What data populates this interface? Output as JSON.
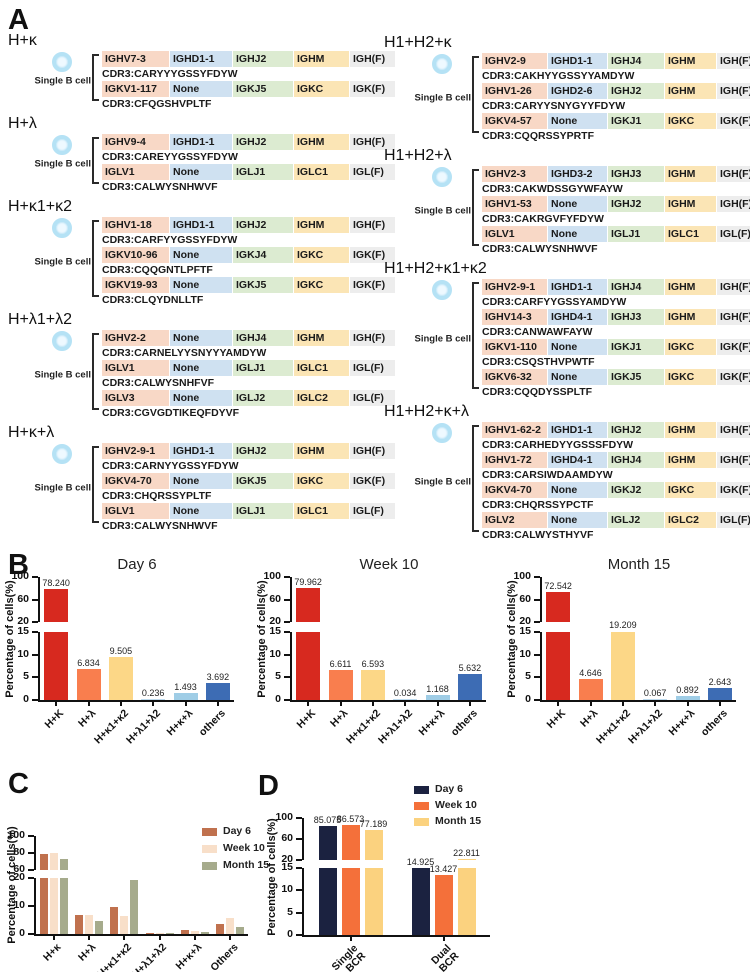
{
  "panel_a": {
    "label": "A",
    "single_b_cell_label": "Single B cell",
    "box_colors": {
      "v_gene": "#f8d8c6",
      "d_gene": "#cfe1f1",
      "j_gene": "#dcebd1",
      "c_gene": "#fbe5b5",
      "functional": "#ededed"
    },
    "columns": [
      {
        "groups": [
          {
            "title": "H+κ",
            "chains": [
              {
                "segments": [
                  "IGHV7-3",
                  "IGHD1-1",
                  "IGHJ2",
                  "IGHM",
                  "IGH(F)"
                ],
                "cdr3": "CDR3:CARYYYGSSYFDYW"
              },
              {
                "segments": [
                  "IGKV1-117",
                  "None",
                  "IGKJ5",
                  "IGKC",
                  "IGK(F)"
                ],
                "cdr3": "CDR3:CFQGSHVPLTF"
              }
            ]
          },
          {
            "title": "H+λ",
            "chains": [
              {
                "segments": [
                  "IGHV9-4",
                  "IGHD1-1",
                  "IGHJ2",
                  "IGHM",
                  "IGH(F)"
                ],
                "cdr3": "CDR3:CAREYYGSSYFDYW"
              },
              {
                "segments": [
                  "IGLV1",
                  "None",
                  "IGLJ1",
                  "IGLC1",
                  "IGL(F)"
                ],
                "cdr3": "CDR3:CALWYSNHWVF"
              }
            ]
          },
          {
            "title": "H+κ1+κ2",
            "chains": [
              {
                "segments": [
                  "IGHV1-18",
                  "IGHD1-1",
                  "IGHJ2",
                  "IGHM",
                  "IGH(F)"
                ],
                "cdr3": "CDR3:CARFYYGSSYFDYW"
              },
              {
                "segments": [
                  "IGKV10-96",
                  "None",
                  "IGKJ4",
                  "IGKC",
                  "IGK(F)"
                ],
                "cdr3": "CDR3:CQQGNTLPFTF"
              },
              {
                "segments": [
                  "IGKV19-93",
                  "None",
                  "IGKJ5",
                  "IGKC",
                  "IGK(F)"
                ],
                "cdr3": "CDR3:CLQYDNLLTF"
              }
            ]
          },
          {
            "title": "H+λ1+λ2",
            "chains": [
              {
                "segments": [
                  "IGHV2-2",
                  "None",
                  "IGHJ4",
                  "IGHM",
                  "IGH(F)"
                ],
                "cdr3": "CDR3:CARNELYYSNYYYAMDYW"
              },
              {
                "segments": [
                  "IGLV1",
                  "None",
                  "IGLJ1",
                  "IGLC1",
                  "IGL(F)"
                ],
                "cdr3": "CDR3:CALWYSNHFVF"
              },
              {
                "segments": [
                  "IGLV3",
                  "None",
                  "IGLJ2",
                  "IGLC2",
                  "IGL(F)"
                ],
                "cdr3": "CDR3:CGVGDTIKEQFDYVF"
              }
            ]
          },
          {
            "title": "H+κ+λ",
            "chains": [
              {
                "segments": [
                  "IGHV2-9-1",
                  "IGHD1-1",
                  "IGHJ2",
                  "IGHM",
                  "IGH(F)"
                ],
                "cdr3": "CDR3:CARNYYGSSYFDYW"
              },
              {
                "segments": [
                  "IGKV4-70",
                  "None",
                  "IGKJ5",
                  "IGKC",
                  "IGK(F)"
                ],
                "cdr3": "CDR3:CHQRSSYPLTF"
              },
              {
                "segments": [
                  "IGLV1",
                  "None",
                  "IGLJ1",
                  "IGLC1",
                  "IGL(F)"
                ],
                "cdr3": "CDR3:CALWYSNHWVF"
              }
            ]
          }
        ]
      },
      {
        "groups": [
          {
            "title": "H1+H2+κ",
            "chains": [
              {
                "segments": [
                  "IGHV2-9",
                  "IGHD1-1",
                  "IGHJ4",
                  "IGHM",
                  "IGH(F)"
                ],
                "cdr3": "CDR3:CAKHYYGSSYYAMDYW"
              },
              {
                "segments": [
                  "IGHV1-26",
                  "IGHD2-6",
                  "IGHJ2",
                  "IGHM",
                  "IGH(F)"
                ],
                "cdr3": "CDR3:CARYYSNYGYYFDYW"
              },
              {
                "segments": [
                  "IGKV4-57",
                  "None",
                  "IGKJ1",
                  "IGKC",
                  "IGK(F)"
                ],
                "cdr3": "CDR3:CQQRSSYPRTF"
              }
            ]
          },
          {
            "title": "H1+H2+λ",
            "chains": [
              {
                "segments": [
                  "IGHV2-3",
                  "IGHD3-2",
                  "IGHJ3",
                  "IGHM",
                  "IGH(F)"
                ],
                "cdr3": "CDR3:CAKWDSSGYWFAYW"
              },
              {
                "segments": [
                  "IGHV1-53",
                  "None",
                  "IGHJ2",
                  "IGHM",
                  "IGH(F)"
                ],
                "cdr3": "CDR3:CAKRGVFYFDYW"
              },
              {
                "segments": [
                  "IGLV1",
                  "None",
                  "IGLJ1",
                  "IGLC1",
                  "IGL(F)"
                ],
                "cdr3": "CDR3:CALWYSNHWVF"
              }
            ]
          },
          {
            "title": "H1+H2+κ1+κ2",
            "chains": [
              {
                "segments": [
                  "IGHV2-9-1",
                  "IGHD1-1",
                  "IGHJ4",
                  "IGHM",
                  "IGH(F)"
                ],
                "cdr3": "CDR3:CARFYYGSSYAMDYW"
              },
              {
                "segments": [
                  "IGHV14-3",
                  "IGHD4-1",
                  "IGHJ3",
                  "IGHM",
                  "IGH(F)"
                ],
                "cdr3": "CDR3:CANWAWFAYW"
              },
              {
                "segments": [
                  "IGKV1-110",
                  "None",
                  "IGKJ1",
                  "IGKC",
                  "IGK(F)"
                ],
                "cdr3": "CDR3:CSQSTHVPWTF"
              },
              {
                "segments": [
                  "IGKV6-32",
                  "None",
                  "IGKJ5",
                  "IGKC",
                  "IGK(F)"
                ],
                "cdr3": "CDR3:CQQDYSSPLTF"
              }
            ]
          },
          {
            "title": "H1+H2+κ+λ",
            "chains": [
              {
                "segments": [
                  "IGHV1-62-2",
                  "IGHD1-1",
                  "IGHJ2",
                  "IGHM",
                  "IGH(F)"
                ],
                "cdr3": "CDR3:CARHEDYYGSSSFDYW"
              },
              {
                "segments": [
                  "IGHV1-72",
                  "IGHD4-1",
                  "IGHJ4",
                  "IGHM",
                  "IGH(F)"
                ],
                "cdr3": "CDR3:CARSIWDAAMDYW"
              },
              {
                "segments": [
                  "IGKV4-70",
                  "None",
                  "IGKJ2",
                  "IGKC",
                  "IGK(F)"
                ],
                "cdr3": "CDR3:CHQRSSYPCTF"
              },
              {
                "segments": [
                  "IGLV2",
                  "None",
                  "IGLJ2",
                  "IGLC2",
                  "IGL(F)"
                ],
                "cdr3": "CDR3:CALWYSTHYVF"
              }
            ]
          }
        ]
      }
    ]
  },
  "panel_b": {
    "label": "B"
  },
  "panel_c": {
    "label": "C"
  },
  "panel_d": {
    "label": "D"
  },
  "chart_data": [
    {
      "id": "day6",
      "type": "bar",
      "title": "Day 6",
      "ylabel": "Percentage of cells(%)",
      "categories": [
        "H+K",
        "H+λ",
        "H+κ1+κ2",
        "H+λ1+λ2",
        "H+κ+λ",
        "others"
      ],
      "values": [
        78.24,
        6.834,
        9.505,
        0.236,
        1.493,
        3.692
      ],
      "value_labels": [
        "78.240",
        "6.834",
        "9.505",
        "0.236",
        "1.493",
        "3.692"
      ],
      "bar_colors": [
        "#d7291f",
        "#f97e4e",
        "#fcd787",
        "#bcd9ed",
        "#9fcde6",
        "#3d6cb4"
      ],
      "axis_break": {
        "lower_range": [
          0,
          15
        ],
        "upper_range": [
          20,
          100
        ]
      },
      "lower_ticks": [
        15,
        10,
        5,
        0
      ],
      "upper_ticks": [
        100,
        60,
        20
      ],
      "grid": false
    },
    {
      "id": "week10",
      "type": "bar",
      "title": "Week 10",
      "ylabel": "Percentage of cells(%)",
      "categories": [
        "H+K",
        "H+λ",
        "H+κ1+κ2",
        "H+λ1+λ2",
        "H+κ+λ",
        "others"
      ],
      "values": [
        79.962,
        6.611,
        6.593,
        0.034,
        1.168,
        5.632
      ],
      "value_labels": [
        "79.962",
        "6.611",
        "6.593",
        "0.034",
        "1.168",
        "5.632"
      ],
      "bar_colors": [
        "#d7291f",
        "#f97e4e",
        "#fcd787",
        "#bcd9ed",
        "#9fcde6",
        "#3d6cb4"
      ],
      "axis_break": {
        "lower_range": [
          0,
          15
        ],
        "upper_range": [
          20,
          100
        ]
      },
      "lower_ticks": [
        15,
        10,
        5,
        0
      ],
      "upper_ticks": [
        100,
        60,
        20
      ],
      "grid": false
    },
    {
      "id": "month15",
      "type": "bar",
      "title": "Month 15",
      "ylabel": "Percentage of cells(%)",
      "categories": [
        "H+K",
        "H+λ",
        "H+κ1+κ2",
        "H+λ1+λ2",
        "H+κ+λ",
        "others"
      ],
      "values": [
        72.542,
        4.646,
        19.209,
        0.067,
        0.892,
        2.643
      ],
      "value_labels": [
        "72.542",
        "4.646",
        "19.209",
        "0.067",
        "0.892",
        "2.643"
      ],
      "bar_colors": [
        "#d7291f",
        "#f97e4e",
        "#fcd787",
        "#bcd9ed",
        "#9fcde6",
        "#3d6cb4"
      ],
      "axis_break": {
        "lower_range": [
          0,
          15
        ],
        "upper_range": [
          20,
          100
        ]
      },
      "lower_ticks": [
        15,
        10,
        5,
        0
      ],
      "upper_ticks": [
        100,
        60,
        20
      ],
      "grid": false
    },
    {
      "id": "panel_c",
      "type": "bar",
      "title": "",
      "ylabel": "Percentage of cells(%)",
      "categories": [
        "H+κ",
        "H+λ",
        "H+κ1+κ2",
        "H+λ1+λ2",
        "H+κ+λ",
        "Others"
      ],
      "series": [
        {
          "name": "Day 6",
          "color": "#c0714e",
          "values": [
            78.24,
            6.834,
            9.505,
            0.236,
            1.493,
            3.692
          ]
        },
        {
          "name": "Week 10",
          "color": "#f8dfc9",
          "values": [
            79.962,
            6.611,
            6.593,
            0.034,
            1.168,
            5.632
          ]
        },
        {
          "name": "Month 15",
          "color": "#a6ab8c",
          "values": [
            72.542,
            4.646,
            19.209,
            0.067,
            0.892,
            2.643
          ]
        }
      ],
      "axis_break": {
        "lower_range": [
          0,
          20
        ],
        "upper_range": [
          60,
          100
        ]
      },
      "lower_ticks": [
        20,
        10,
        0
      ],
      "upper_ticks": [
        100,
        80,
        60
      ],
      "legend_position": "top-right",
      "grid": false
    },
    {
      "id": "panel_d",
      "type": "bar",
      "title": "",
      "ylabel": "Percentage of cells(%)",
      "categories": [
        "Single BCR",
        "Dual BCR"
      ],
      "series": [
        {
          "name": "Day 6",
          "color": "#1b2240",
          "values": [
            85.075,
            14.925
          ],
          "value_labels": [
            "85.075",
            "14.925"
          ]
        },
        {
          "name": "Week 10",
          "color": "#f4703a",
          "values": [
            86.573,
            13.427
          ],
          "value_labels": [
            "86.573",
            "13.427"
          ]
        },
        {
          "name": "Month 15",
          "color": "#fbd27f",
          "values": [
            77.189,
            22.811
          ],
          "value_labels": [
            "77.189",
            "22.811"
          ]
        }
      ],
      "axis_break": {
        "lower_range": [
          0,
          15
        ],
        "upper_range": [
          20,
          100
        ]
      },
      "lower_ticks": [
        15,
        10,
        5,
        0
      ],
      "upper_ticks": [
        100,
        60,
        20
      ],
      "legend_position": "top-right",
      "grid": false
    }
  ]
}
